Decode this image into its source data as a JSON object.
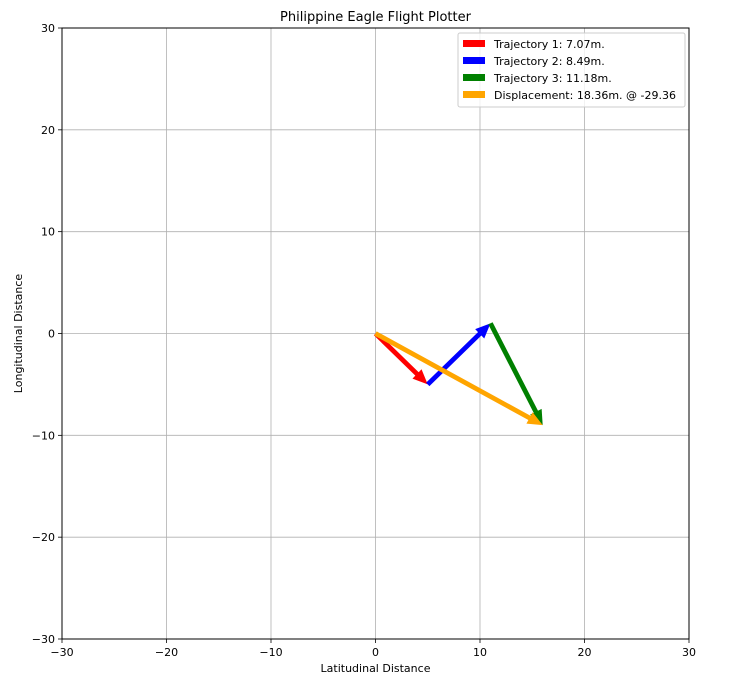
{
  "chart_data": {
    "type": "quiver",
    "title": "Philippine Eagle Flight Plotter",
    "xlabel": "Latitudinal Distance",
    "ylabel": "Longitudinal Distance",
    "xlim": [
      -30,
      30
    ],
    "ylim": [
      -30,
      30
    ],
    "xticks": [
      -30,
      -20,
      -10,
      0,
      10,
      20,
      30
    ],
    "yticks": [
      -30,
      -20,
      -10,
      0,
      10,
      20,
      30
    ],
    "xtick_labels": [
      "−30",
      "−20",
      "−10",
      "0",
      "10",
      "20",
      "30"
    ],
    "ytick_labels": [
      "−30",
      "−20",
      "−10",
      "0",
      "10",
      "20",
      "30"
    ],
    "grid": true,
    "legend_position": "top-right",
    "series": [
      {
        "name": "Trajectory 1: 7.07m.",
        "color": "#ff0000",
        "start": [
          0,
          0
        ],
        "end": [
          5,
          -5
        ]
      },
      {
        "name": "Trajectory 2: 8.49m.",
        "color": "#0000ff",
        "start": [
          5,
          -5
        ],
        "end": [
          11,
          1
        ]
      },
      {
        "name": "Trajectory 3: 11.18m.",
        "color": "#008000",
        "start": [
          11,
          1
        ],
        "end": [
          16,
          -9
        ]
      },
      {
        "name": "Displacement: 18.36m. @ -29.36",
        "color": "#ffa500",
        "start": [
          0,
          0
        ],
        "end": [
          16,
          -9
        ]
      }
    ]
  }
}
